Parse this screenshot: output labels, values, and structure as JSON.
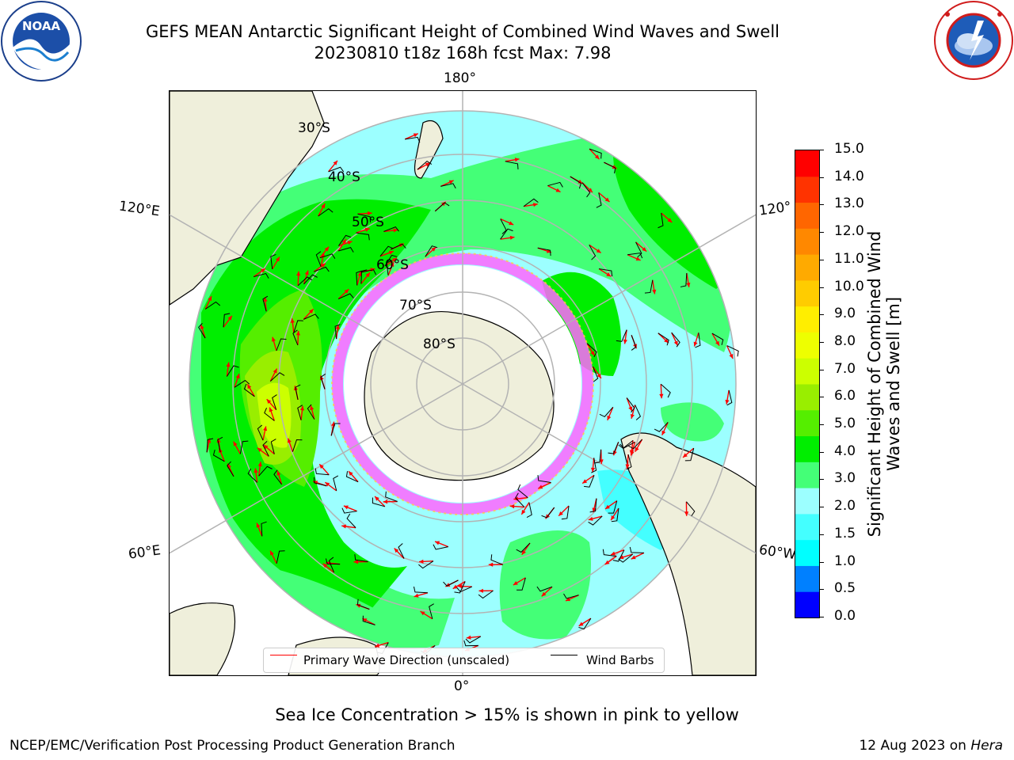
{
  "header": {
    "title_line1": "GEFS MEAN Antarctic Significant Height of Combined Wind Waves and Swell",
    "title_line2": "20230810 t18z 168h fcst   Max: 7.98"
  },
  "logos": {
    "left": {
      "text": "NOAA",
      "ring_text": "NATIONAL OCEANIC AND ATMOSPHERIC ADMINISTRATION · U.S. DEPARTMENT OF COMMERCE"
    },
    "right": {
      "ring_text": "NATIONAL WEATHER SERVICE"
    }
  },
  "map": {
    "longitude_labels": {
      "top": "180°",
      "bottom": "0°",
      "left_upper": "120°E",
      "left_lower": "60°E",
      "right_upper": "120°",
      "right_lower": "60°W"
    },
    "latitude_labels": [
      "30°S",
      "40°S",
      "50°S",
      "60°S",
      "70°S",
      "80°S"
    ]
  },
  "legend": {
    "primary_wave_label": "Primary Wave Direction (unscaled)",
    "wind_barbs_label": "Wind Barbs",
    "primary_wave_color": "#ff0000",
    "wind_barbs_color": "#000000"
  },
  "colorbar": {
    "title": "Significant Height of Combined Wind Waves and Swell [m]",
    "ticks": [
      "15.0",
      "14.0",
      "13.0",
      "12.0",
      "11.0",
      "10.0",
      "9.0",
      "8.0",
      "7.0",
      "6.0",
      "5.0",
      "4.0",
      "3.0",
      "2.0",
      "1.5",
      "1.0",
      "0.5",
      "0.0"
    ],
    "colors": [
      "#0000ff",
      "#0080ff",
      "#00ffff",
      "#44ffff",
      "#9cffff",
      "#44ff77",
      "#00ee00",
      "#55ee00",
      "#99ee00",
      "#ccff00",
      "#eeff00",
      "#ffee00",
      "#ffcc00",
      "#ffaa00",
      "#ff8800",
      "#ff6600",
      "#ff3300",
      "#ff0000"
    ]
  },
  "footer": {
    "ice_note": "Sea Ice Concentration > 15% is shown in pink to yellow",
    "branch": "NCEP/EMC/Verification Post Processing Product Generation Branch",
    "date": "12 Aug 2023 on",
    "machine": "Hera"
  }
}
